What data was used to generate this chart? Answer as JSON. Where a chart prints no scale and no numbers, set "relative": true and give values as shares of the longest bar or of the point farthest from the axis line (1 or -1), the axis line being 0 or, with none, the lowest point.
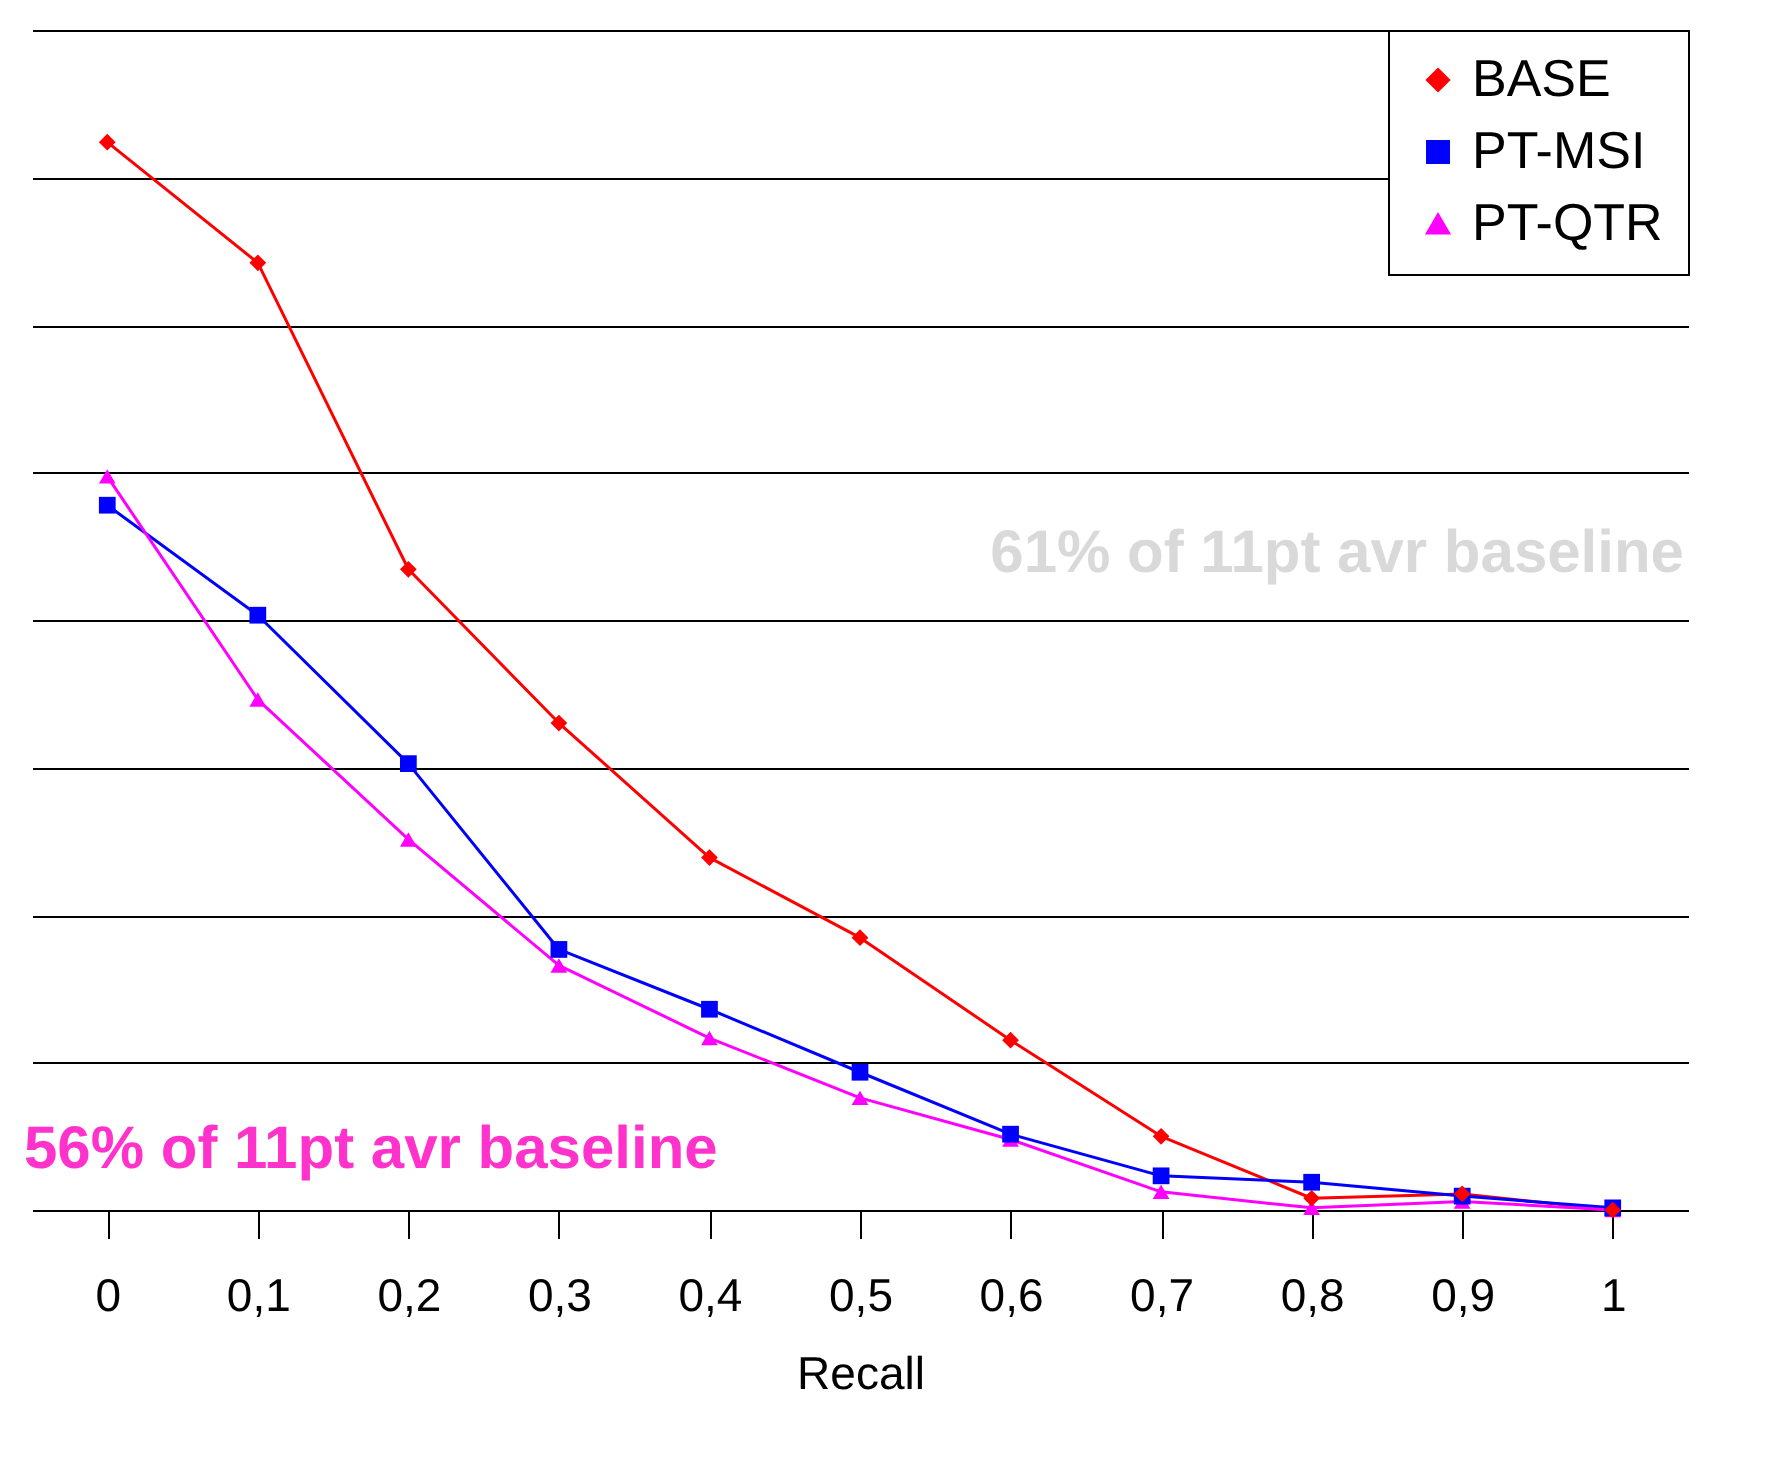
{
  "chart_data": {
    "type": "line",
    "relative": true,
    "xlabel": "Recall",
    "categories": [
      "0",
      "0,1",
      "0,2",
      "0,3",
      "0,4",
      "0,5",
      "0,6",
      "0,7",
      "0,8",
      "0,9",
      "1"
    ],
    "series": [
      {
        "name": "BASE",
        "color": "#ff0000",
        "marker": "diamond",
        "values": [
          1,
          0.887,
          0.6,
          0.456,
          0.33,
          0.255,
          0.159,
          0.069,
          0.011,
          0.015,
          0
        ]
      },
      {
        "name": "PT-MSI",
        "color": "#0000ff",
        "marker": "square",
        "values": [
          0.66,
          0.557,
          0.418,
          0.244,
          0.188,
          0.129,
          0.071,
          0.032,
          0.026,
          0.013,
          0.002
        ]
      },
      {
        "name": "PT-QTR",
        "color": "#ff00ff",
        "marker": "triangle",
        "values": [
          0.687,
          0.478,
          0.347,
          0.229,
          0.161,
          0.105,
          0.066,
          0.017,
          0.002,
          0.008,
          0
        ]
      }
    ],
    "annotations": [
      "61% of 11pt avr baseline",
      "56% of 11pt avr baseline"
    ],
    "grid": "y",
    "legend": "top right"
  }
}
